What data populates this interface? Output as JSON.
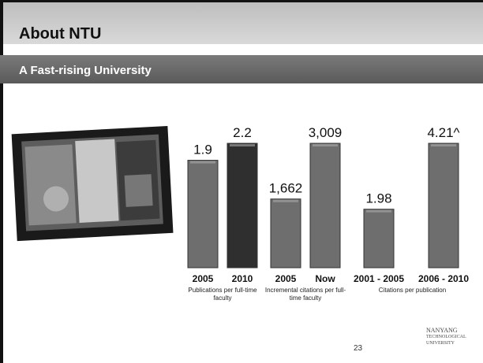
{
  "header": {
    "title": "About NTU",
    "subtitle": "A Fast-rising University"
  },
  "chart_data": [
    {
      "type": "bar",
      "categories": [
        "2005",
        "2010"
      ],
      "values": [
        1.9,
        2.2
      ],
      "colors": [
        "#6e6e6e",
        "#2f2f2f"
      ],
      "xlabel": "Publications per full-time faculty"
    },
    {
      "type": "bar",
      "categories": [
        "2005",
        "Now"
      ],
      "values": [
        1662,
        3009
      ],
      "value_labels": [
        "1,662",
        "3,009"
      ],
      "color": "#6e6e6e",
      "xlabel": "Incremental citations per full-time faculty"
    },
    {
      "type": "bar",
      "categories": [
        "2001 - 2005",
        "2006 - 2010"
      ],
      "values": [
        1.98,
        4.21
      ],
      "value_labels": [
        "1.98",
        "4.21^"
      ],
      "color": "#6e6e6e",
      "xlabel": "Citations per publication"
    }
  ],
  "page_number": "23",
  "logo": {
    "lines": [
      "NANYANG",
      "TECHNOLOGICAL",
      "UNIVERSITY"
    ]
  }
}
